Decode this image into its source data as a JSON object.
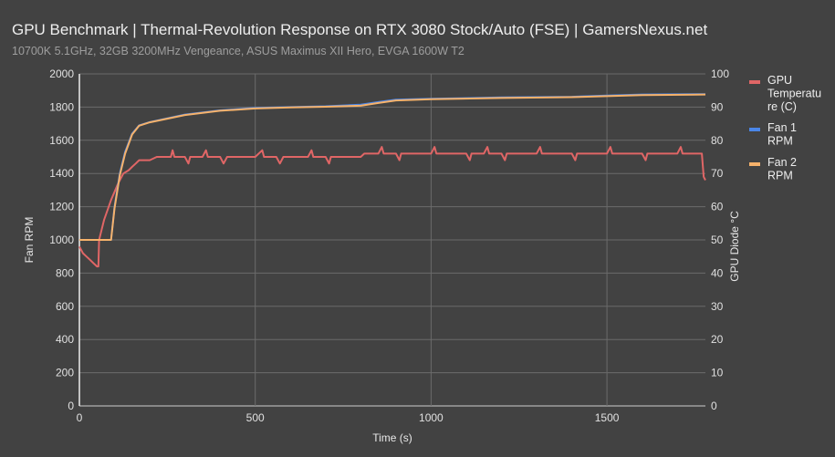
{
  "chart_data": {
    "type": "line",
    "title": "GPU Benchmark | Thermal-Revolution Response on RTX 3080 Stock/Auto (FSE) | GamersNexus.net",
    "subtitle": "10700K 5.1GHz, 32GB 3200MHz Vengeance, ASUS Maximus XII Hero, EVGA 1600W T2",
    "xlabel": "Time (s)",
    "ylabel": "Fan RPM",
    "y2label": "GPU Diode °C",
    "xlim": [
      0,
      1780
    ],
    "ylim": [
      0,
      2000
    ],
    "y2lim": [
      0,
      100
    ],
    "xticks": [
      0,
      500,
      1000,
      1500
    ],
    "yticks": [
      0,
      200,
      400,
      600,
      800,
      1000,
      1200,
      1400,
      1600,
      1800,
      2000
    ],
    "y2ticks": [
      0,
      10,
      20,
      30,
      40,
      50,
      60,
      70,
      80,
      90,
      100
    ],
    "grid": true,
    "legend": "right",
    "series": [
      {
        "name": "GPU Temperature (C)",
        "axis": "right",
        "color": "#e06666",
        "points": [
          [
            0,
            48
          ],
          [
            10,
            46
          ],
          [
            20,
            45
          ],
          [
            30,
            44
          ],
          [
            40,
            43
          ],
          [
            50,
            42
          ],
          [
            54,
            42
          ],
          [
            56,
            50
          ],
          [
            70,
            56
          ],
          [
            90,
            62
          ],
          [
            110,
            67
          ],
          [
            125,
            70
          ],
          [
            140,
            71
          ],
          [
            150,
            72
          ],
          [
            160,
            73
          ],
          [
            170,
            74
          ],
          [
            200,
            74
          ],
          [
            220,
            75
          ],
          [
            260,
            75
          ],
          [
            265,
            77
          ],
          [
            270,
            75
          ],
          [
            300,
            75
          ],
          [
            310,
            73
          ],
          [
            315,
            75
          ],
          [
            350,
            75
          ],
          [
            360,
            77
          ],
          [
            365,
            75
          ],
          [
            400,
            75
          ],
          [
            410,
            73
          ],
          [
            420,
            75
          ],
          [
            500,
            75
          ],
          [
            520,
            77
          ],
          [
            525,
            75
          ],
          [
            560,
            75
          ],
          [
            570,
            73
          ],
          [
            580,
            75
          ],
          [
            650,
            75
          ],
          [
            660,
            77
          ],
          [
            665,
            75
          ],
          [
            700,
            75
          ],
          [
            710,
            73
          ],
          [
            715,
            75
          ],
          [
            800,
            75
          ],
          [
            810,
            76
          ],
          [
            850,
            76
          ],
          [
            860,
            78
          ],
          [
            865,
            76
          ],
          [
            900,
            76
          ],
          [
            910,
            74
          ],
          [
            915,
            76
          ],
          [
            1000,
            76
          ],
          [
            1010,
            78
          ],
          [
            1015,
            76
          ],
          [
            1100,
            76
          ],
          [
            1110,
            74
          ],
          [
            1115,
            76
          ],
          [
            1150,
            76
          ],
          [
            1160,
            78
          ],
          [
            1165,
            76
          ],
          [
            1200,
            76
          ],
          [
            1210,
            74
          ],
          [
            1215,
            76
          ],
          [
            1300,
            76
          ],
          [
            1310,
            78
          ],
          [
            1315,
            76
          ],
          [
            1400,
            76
          ],
          [
            1410,
            74
          ],
          [
            1415,
            76
          ],
          [
            1500,
            76
          ],
          [
            1510,
            78
          ],
          [
            1515,
            76
          ],
          [
            1600,
            76
          ],
          [
            1610,
            74
          ],
          [
            1615,
            76
          ],
          [
            1700,
            76
          ],
          [
            1710,
            78
          ],
          [
            1715,
            76
          ],
          [
            1770,
            76
          ],
          [
            1775,
            69
          ],
          [
            1780,
            68
          ]
        ]
      },
      {
        "name": "Fan 1 RPM",
        "axis": "left",
        "color": "#4a86e8",
        "points": [
          [
            0,
            1000
          ],
          [
            90,
            1000
          ],
          [
            100,
            1200
          ],
          [
            115,
            1400
          ],
          [
            130,
            1530
          ],
          [
            150,
            1640
          ],
          [
            170,
            1690
          ],
          [
            200,
            1710
          ],
          [
            300,
            1755
          ],
          [
            400,
            1780
          ],
          [
            500,
            1795
          ],
          [
            600,
            1800
          ],
          [
            700,
            1805
          ],
          [
            800,
            1815
          ],
          [
            850,
            1830
          ],
          [
            900,
            1845
          ],
          [
            1000,
            1850
          ],
          [
            1200,
            1858
          ],
          [
            1400,
            1862
          ],
          [
            1500,
            1870
          ],
          [
            1600,
            1876
          ],
          [
            1780,
            1878
          ]
        ]
      },
      {
        "name": "Fan 2 RPM",
        "axis": "left",
        "color": "#f6b26b",
        "points": [
          [
            0,
            1000
          ],
          [
            90,
            1000
          ],
          [
            100,
            1190
          ],
          [
            115,
            1390
          ],
          [
            130,
            1520
          ],
          [
            150,
            1635
          ],
          [
            170,
            1688
          ],
          [
            200,
            1708
          ],
          [
            300,
            1752
          ],
          [
            400,
            1778
          ],
          [
            500,
            1792
          ],
          [
            600,
            1798
          ],
          [
            700,
            1802
          ],
          [
            800,
            1808
          ],
          [
            850,
            1825
          ],
          [
            900,
            1840
          ],
          [
            1000,
            1848
          ],
          [
            1200,
            1855
          ],
          [
            1400,
            1860
          ],
          [
            1500,
            1866
          ],
          [
            1600,
            1872
          ],
          [
            1780,
            1876
          ]
        ]
      }
    ]
  }
}
